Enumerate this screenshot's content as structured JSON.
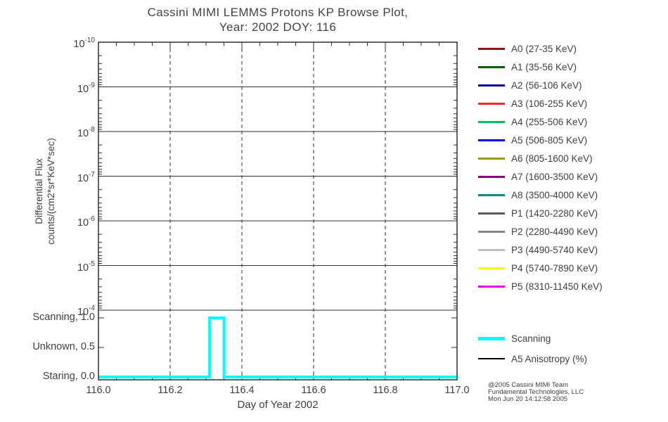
{
  "title": {
    "line1": "Cassini MIMI LEMMS Protons KP Browse Plot,",
    "line2": "Year: 2002 DOY: 116"
  },
  "axes": {
    "xlabel": "Day of Year 2002",
    "ylabel_line1": "Differential Flux",
    "ylabel_line2": "counts/(cm2*sr*KeV*sec)"
  },
  "chart_data": {
    "type": "line",
    "title": "Cassini MIMI LEMMS Protons KP Browse Plot, Year: 2002 DOY: 116",
    "xlabel": "Day of Year 2002",
    "ylabel": "Differential Flux counts/(cm2*sr*KeV*sec)",
    "xlim": [
      116.0,
      117.0
    ],
    "x_major_ticks": [
      116.0,
      116.2,
      116.4,
      116.6,
      116.8,
      117.0
    ],
    "x_tick_labels": [
      "116.0",
      "116.2",
      "116.4",
      "116.6",
      "116.8",
      "117.0"
    ],
    "x_minor_tick_step": 0.05,
    "y_scale": "log",
    "y_decade_exponents": [
      -10,
      -9,
      -8,
      -7,
      -6,
      -5,
      -4
    ],
    "y_axis_orientation": "10^-10 at top, 10^-4 at bottom",
    "grid": {
      "horizontal": "solid",
      "vertical": "dashed"
    },
    "flux_series": [],
    "mode_axis": {
      "levels": [
        {
          "label": "Scanning, 1.0",
          "value": 1.0
        },
        {
          "label": "Unknown, 0.5",
          "value": 0.5
        },
        {
          "label": "Staring, 0.0",
          "value": 0.0
        }
      ]
    },
    "mode_series": {
      "name": "Scanning",
      "color": "#00FFFF",
      "points": [
        {
          "x": 116.0,
          "y": 0.0
        },
        {
          "x": 116.31,
          "y": 0.0
        },
        {
          "x": 116.31,
          "y": 1.0
        },
        {
          "x": 116.35,
          "y": 1.0
        },
        {
          "x": 116.35,
          "y": 0.0
        },
        {
          "x": 117.0,
          "y": 0.0
        }
      ]
    }
  },
  "legend": {
    "energy_channels": [
      {
        "label": "A0 (27-35 KeV)",
        "color": "#8B1A1A"
      },
      {
        "label": "A1 (35-56 KeV)",
        "color": "#006400"
      },
      {
        "label": "A2 (56-106 KeV)",
        "color": "#00008B"
      },
      {
        "label": "A3 (106-255 KeV)",
        "color": "#EE2C2C"
      },
      {
        "label": "A4 (255-506 KeV)",
        "color": "#00C060"
      },
      {
        "label": "A5 (506-805 KeV)",
        "color": "#0000FF"
      },
      {
        "label": "A6 (805-1600 KeV)",
        "color": "#9A9A00"
      },
      {
        "label": "A7 (1600-3500 KeV)",
        "color": "#8B008B"
      },
      {
        "label": "A8 (3500-4000 KeV)",
        "color": "#008B8B"
      },
      {
        "label": "P1 (1420-2280 KeV)",
        "color": "#5A5A5A"
      },
      {
        "label": "P2 (2280-4490 KeV)",
        "color": "#848484"
      },
      {
        "label": "P3 (4490-5740 KeV)",
        "color": "#C0C0C0"
      },
      {
        "label": "P4 (5740-7890 KeV)",
        "color": "#FFFF00"
      },
      {
        "label": "P5 (8310-11450 KeV)",
        "color": "#EE00EE"
      }
    ],
    "mode_items": [
      {
        "label": "Scanning",
        "color": "#00FFFF",
        "thickness": 5
      },
      {
        "label": "A5 Anisotropy (%)",
        "color": "#000000",
        "thickness": 2
      }
    ]
  },
  "footer": {
    "line1": "@2005 Cassini MIMI Team",
    "line2": "Fundamental Technologies, LLC",
    "line3": "Mon Jun 20 14:12:58 2005"
  }
}
